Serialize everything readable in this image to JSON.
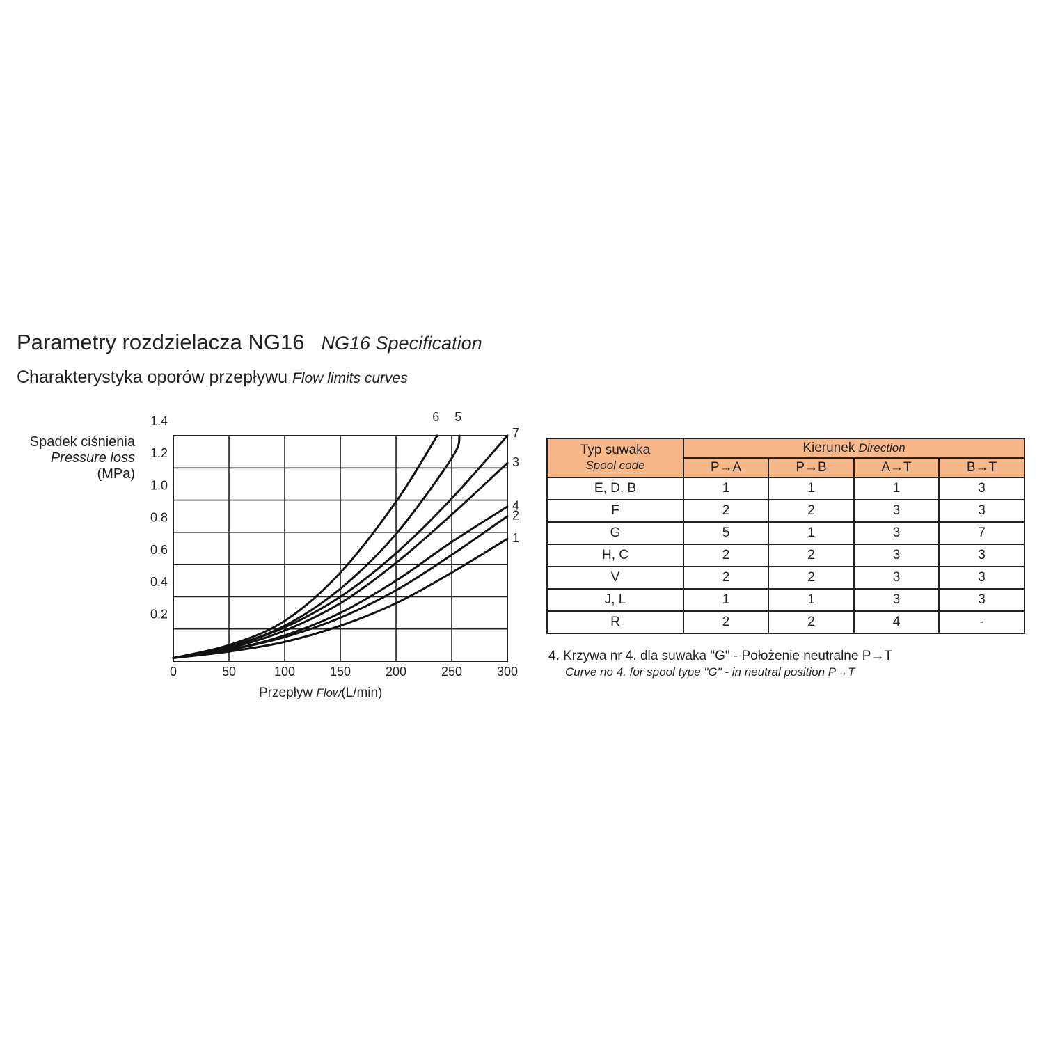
{
  "heading": {
    "title": "Parametry rozdzielacza NG16",
    "title_en": "NG16 Specification",
    "subtitle": "Charakterystyka oporów przepływu",
    "subtitle_en": "Flow limits curves"
  },
  "chart_data": {
    "type": "line",
    "ylabel": [
      "Spadek ciśnienia",
      "Pressure loss",
      "(MPa)"
    ],
    "xlabel_pl": "Przepływ",
    "xlabel_en": "Flow",
    "xlabel_unit": "(L/min)",
    "xlim": [
      0,
      300
    ],
    "ylim": [
      0,
      1.4
    ],
    "xticks": [
      "0",
      "50",
      "100",
      "150",
      "200",
      "250",
      "300"
    ],
    "yticks": [
      "0.2",
      "0.4",
      "0.6",
      "0.8",
      "1.0",
      "1.2",
      "1.4"
    ],
    "grid": true,
    "series": [
      {
        "name": "1",
        "x": [
          0,
          50,
          100,
          150,
          200,
          250,
          300
        ],
        "y": [
          0.02,
          0.06,
          0.12,
          0.22,
          0.36,
          0.55,
          0.76
        ]
      },
      {
        "name": "2",
        "x": [
          0,
          50,
          100,
          150,
          200,
          250,
          300
        ],
        "y": [
          0.02,
          0.07,
          0.15,
          0.27,
          0.44,
          0.66,
          0.9
        ]
      },
      {
        "name": "3",
        "x": [
          0,
          50,
          100,
          150,
          200,
          250,
          300
        ],
        "y": [
          0.02,
          0.08,
          0.19,
          0.36,
          0.61,
          0.91,
          1.23
        ]
      },
      {
        "name": "4",
        "x": [
          0,
          50,
          100,
          150,
          200,
          250,
          300
        ],
        "y": [
          0.02,
          0.07,
          0.16,
          0.3,
          0.5,
          0.74,
          0.96
        ]
      },
      {
        "name": "5",
        "x": [
          0,
          50,
          100,
          150,
          200,
          250,
          257
        ],
        "y": [
          0.02,
          0.09,
          0.22,
          0.45,
          0.79,
          1.26,
          1.4
        ]
      },
      {
        "name": "6",
        "x": [
          0,
          50,
          100,
          150,
          200,
          237
        ],
        "y": [
          0.02,
          0.1,
          0.25,
          0.55,
          0.99,
          1.4
        ]
      },
      {
        "name": "7",
        "x": [
          0,
          50,
          100,
          150,
          200,
          250,
          300
        ],
        "y": [
          0.02,
          0.09,
          0.21,
          0.4,
          0.67,
          1.01,
          1.4
        ]
      }
    ]
  },
  "table": {
    "spool_header": "Typ suwaka",
    "spool_header_en": "Spool code",
    "direction_header": "Kierunek",
    "direction_header_en": "Direction",
    "columns": [
      "P→A",
      "P→B",
      "A→T",
      "B→T"
    ],
    "rows": [
      {
        "spool": "E, D, B",
        "values": [
          "1",
          "1",
          "1",
          "3"
        ]
      },
      {
        "spool": "F",
        "values": [
          "2",
          "2",
          "3",
          "3"
        ]
      },
      {
        "spool": "G",
        "values": [
          "5",
          "1",
          "3",
          "7"
        ]
      },
      {
        "spool": "H, C",
        "values": [
          "2",
          "2",
          "3",
          "3"
        ]
      },
      {
        "spool": "V",
        "values": [
          "2",
          "2",
          "3",
          "3"
        ]
      },
      {
        "spool": "J, L",
        "values": [
          "1",
          "1",
          "3",
          "3"
        ]
      },
      {
        "spool": "R",
        "values": [
          "2",
          "2",
          "4",
          "-"
        ]
      }
    ],
    "header_color": "#f8b88a"
  },
  "note": {
    "text": "4. Krzywa nr 4. dla suwaka \"G\" - Położenie neutralne P→T",
    "text_en": "Curve no 4. for spool type \"G\" - in neutral position P→T"
  }
}
